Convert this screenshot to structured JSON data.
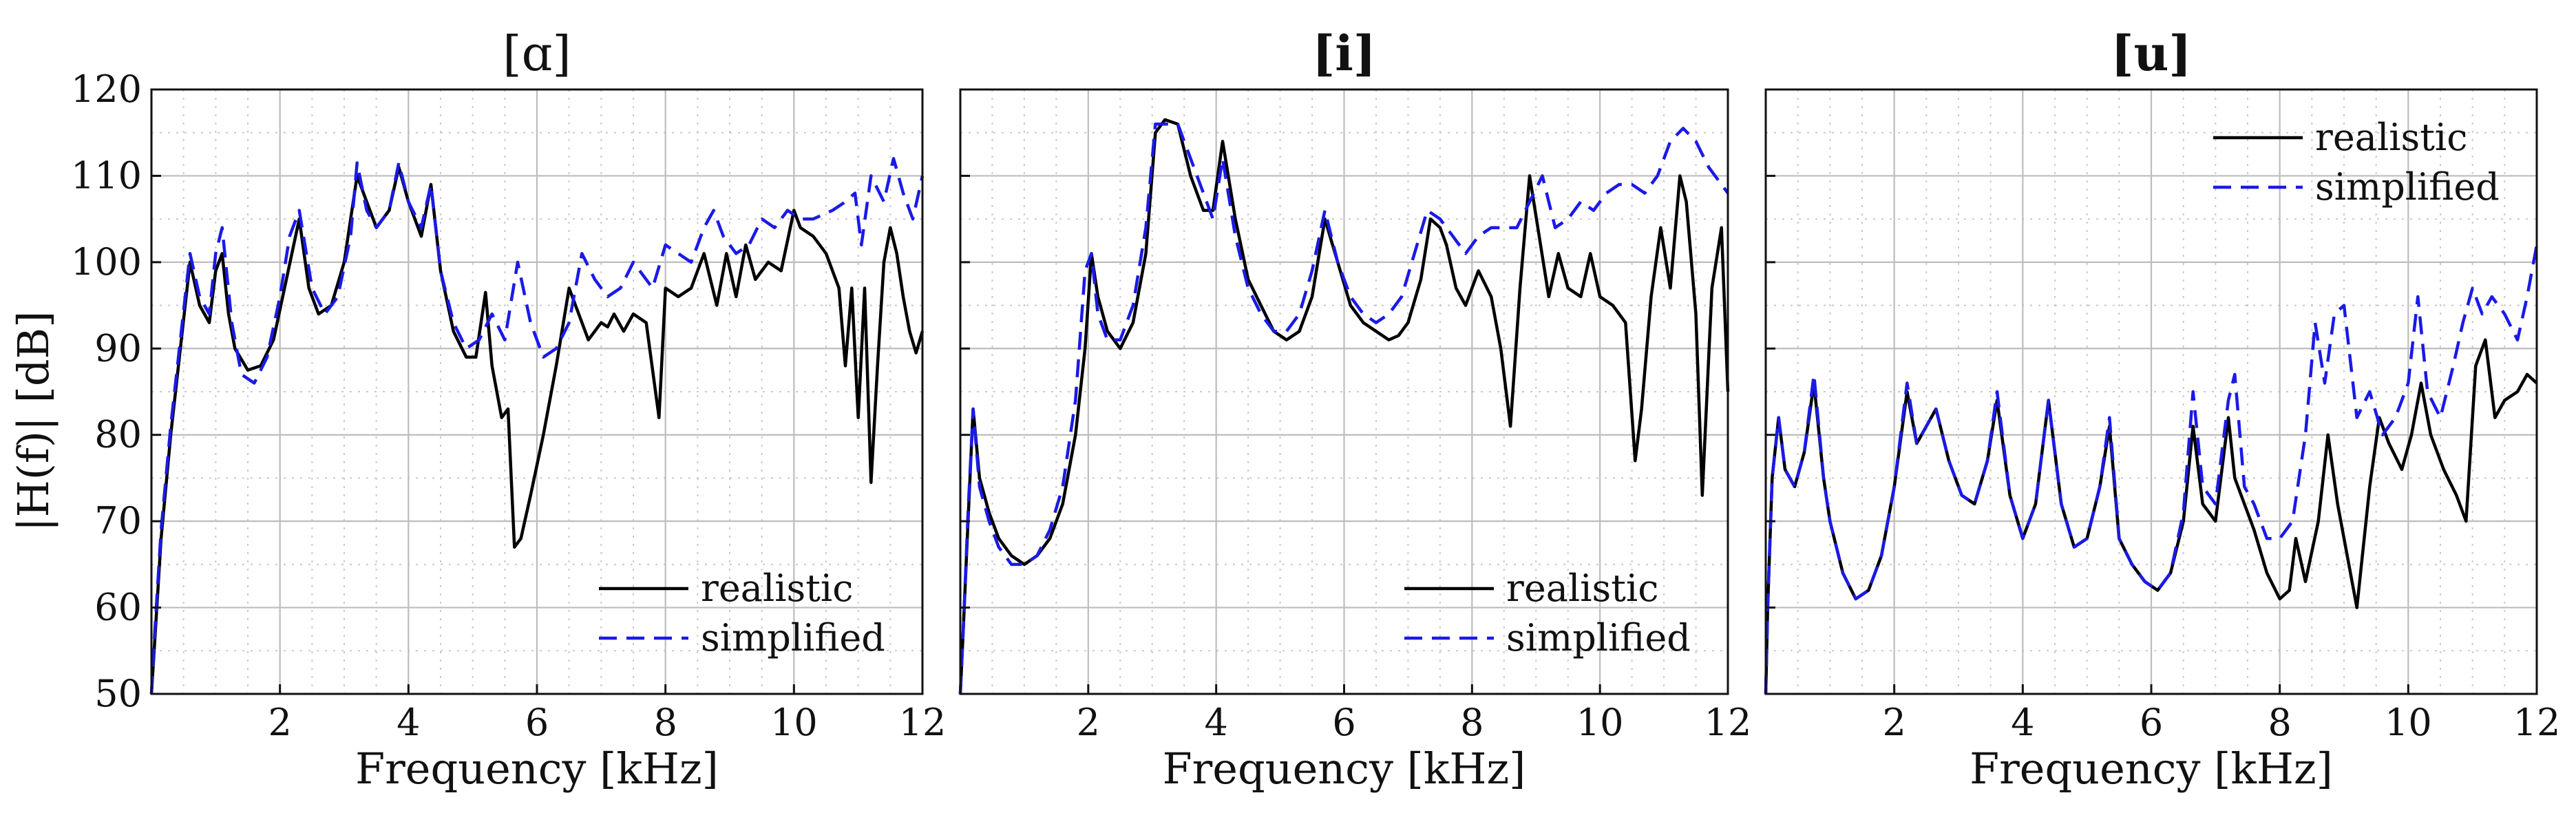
{
  "colors": {
    "realistic": "#000000",
    "simplified": "#1a1ae6",
    "grid": "#bdbdbd"
  },
  "ylabel": "|H(f)| [dB]",
  "chart_data": [
    {
      "type": "line",
      "title": "[ɑ]",
      "title_bold": false,
      "xlabel": "Frequency [kHz]",
      "xlim": [
        0,
        12
      ],
      "ylim": [
        50,
        120
      ],
      "xticks": [
        2,
        4,
        6,
        8,
        10,
        12
      ],
      "yticks": [
        50,
        60,
        70,
        80,
        90,
        100,
        110,
        120
      ],
      "legend": "bottom-right",
      "series": [
        {
          "name": "realistic",
          "style": "solid",
          "x": [
            0,
            0.05,
            0.15,
            0.3,
            0.45,
            0.6,
            0.75,
            0.9,
            1.0,
            1.1,
            1.2,
            1.3,
            1.5,
            1.7,
            1.9,
            2.1,
            2.3,
            2.45,
            2.6,
            2.8,
            3.0,
            3.2,
            3.35,
            3.5,
            3.7,
            3.85,
            4.0,
            4.2,
            4.35,
            4.5,
            4.7,
            4.9,
            5.05,
            5.2,
            5.3,
            5.45,
            5.55,
            5.65,
            5.75,
            5.9,
            6.1,
            6.3,
            6.5,
            6.65,
            6.8,
            7.0,
            7.1,
            7.2,
            7.35,
            7.5,
            7.7,
            7.9,
            8.0,
            8.2,
            8.4,
            8.6,
            8.8,
            8.95,
            9.1,
            9.25,
            9.4,
            9.6,
            9.8,
            10.0,
            10.1,
            10.3,
            10.5,
            10.7,
            10.8,
            10.9,
            11.0,
            11.1,
            11.2,
            11.3,
            11.4,
            11.5,
            11.6,
            11.7,
            11.8,
            11.9,
            12.0
          ],
          "y": [
            50,
            56,
            68,
            80,
            90,
            100,
            95,
            93,
            99,
            101,
            94,
            90,
            87.5,
            88,
            91,
            98,
            105,
            97,
            94,
            95,
            100,
            110,
            107,
            104,
            106,
            111,
            107,
            103,
            109,
            99,
            92,
            89,
            89,
            96.5,
            88,
            82,
            83,
            67,
            68,
            73,
            80,
            88,
            97,
            94,
            91,
            93,
            92.5,
            94,
            92,
            94,
            93,
            82,
            97,
            96,
            97,
            101,
            95,
            101,
            96,
            102,
            98,
            100,
            99,
            106,
            104,
            103,
            101,
            97,
            88,
            97,
            82,
            97,
            74.5,
            88,
            100,
            104,
            101,
            96,
            92,
            89.5,
            92
          ]
        },
        {
          "name": "simplified",
          "style": "dashed",
          "x": [
            0,
            0.05,
            0.15,
            0.3,
            0.45,
            0.6,
            0.75,
            0.9,
            1.0,
            1.1,
            1.25,
            1.4,
            1.6,
            1.8,
            2.0,
            2.15,
            2.3,
            2.5,
            2.7,
            2.9,
            3.1,
            3.2,
            3.35,
            3.5,
            3.7,
            3.85,
            4.0,
            4.2,
            4.35,
            4.5,
            4.7,
            4.9,
            5.1,
            5.3,
            5.5,
            5.7,
            5.9,
            6.1,
            6.3,
            6.5,
            6.7,
            6.9,
            7.1,
            7.3,
            7.5,
            7.8,
            8.0,
            8.2,
            8.4,
            8.6,
            8.75,
            8.9,
            9.1,
            9.3,
            9.5,
            9.7,
            9.9,
            10.1,
            10.3,
            10.6,
            10.8,
            10.95,
            11.05,
            11.2,
            11.4,
            11.55,
            11.7,
            11.85,
            12.0
          ],
          "y": [
            50,
            57,
            69,
            81,
            91,
            101,
            96,
            94,
            101,
            104,
            93,
            87,
            86,
            89,
            96,
            103,
            106,
            97,
            94,
            96,
            103,
            111.5,
            106,
            104,
            106,
            111.5,
            107,
            104,
            109,
            99,
            93,
            90,
            91,
            94,
            91,
            100,
            93,
            89,
            90,
            93,
            101,
            98,
            96,
            97,
            100,
            97,
            102,
            101,
            100,
            104,
            106,
            103,
            101,
            102,
            105,
            104,
            106,
            105,
            105,
            106,
            107,
            108,
            102,
            110,
            107,
            112,
            108,
            105,
            110
          ]
        }
      ]
    },
    {
      "type": "line",
      "title": "[i]",
      "title_bold": true,
      "xlabel": "Frequency [kHz]",
      "xlim": [
        0,
        12
      ],
      "ylim": [
        50,
        120
      ],
      "xticks": [
        2,
        4,
        6,
        8,
        10,
        12
      ],
      "yticks": [
        50,
        60,
        70,
        80,
        90,
        100,
        110,
        120
      ],
      "legend": "bottom-right",
      "series": [
        {
          "name": "realistic",
          "style": "solid",
          "x": [
            0,
            0.05,
            0.12,
            0.2,
            0.3,
            0.45,
            0.6,
            0.8,
            1.0,
            1.2,
            1.4,
            1.6,
            1.8,
            1.95,
            2.05,
            2.15,
            2.3,
            2.5,
            2.7,
            2.9,
            3.05,
            3.2,
            3.4,
            3.6,
            3.8,
            3.95,
            4.1,
            4.3,
            4.5,
            4.7,
            4.9,
            5.1,
            5.3,
            5.5,
            5.7,
            5.9,
            6.1,
            6.3,
            6.5,
            6.7,
            6.85,
            7.0,
            7.2,
            7.35,
            7.5,
            7.6,
            7.75,
            7.9,
            8.1,
            8.3,
            8.45,
            8.6,
            8.75,
            8.9,
            9.05,
            9.2,
            9.35,
            9.5,
            9.7,
            9.85,
            10.0,
            10.2,
            10.4,
            10.55,
            10.65,
            10.8,
            10.95,
            11.1,
            11.25,
            11.35,
            11.5,
            11.6,
            11.75,
            11.9,
            12.0
          ],
          "y": [
            50,
            58,
            70,
            83,
            75,
            71,
            68,
            66,
            65,
            66,
            68,
            72,
            80,
            90,
            101,
            96,
            92,
            90,
            93,
            101,
            115,
            116.5,
            116,
            110,
            106,
            106,
            114,
            105,
            98,
            95,
            92,
            91,
            92,
            96,
            105,
            100,
            95,
            93,
            92,
            91,
            91.5,
            93,
            98,
            105,
            104,
            102,
            97,
            95,
            99,
            96,
            90,
            81,
            97,
            110,
            103,
            96,
            101,
            97,
            96,
            101,
            96,
            95,
            93,
            77,
            83,
            96,
            104,
            97,
            110,
            107,
            94,
            73,
            97,
            104,
            85
          ]
        },
        {
          "name": "simplified",
          "style": "dashed",
          "x": [
            0,
            0.05,
            0.12,
            0.2,
            0.3,
            0.45,
            0.6,
            0.8,
            1.0,
            1.2,
            1.4,
            1.6,
            1.8,
            1.95,
            2.05,
            2.15,
            2.3,
            2.5,
            2.7,
            2.9,
            3.05,
            3.2,
            3.4,
            3.6,
            3.8,
            3.95,
            4.1,
            4.3,
            4.5,
            4.7,
            4.9,
            5.1,
            5.3,
            5.5,
            5.7,
            5.9,
            6.1,
            6.3,
            6.5,
            6.7,
            6.9,
            7.1,
            7.3,
            7.5,
            7.7,
            7.9,
            8.1,
            8.3,
            8.5,
            8.7,
            8.9,
            9.1,
            9.3,
            9.5,
            9.7,
            9.9,
            10.1,
            10.3,
            10.5,
            10.7,
            10.9,
            11.1,
            11.3,
            11.5,
            11.7,
            11.9,
            12.0
          ],
          "y": [
            50,
            58,
            71,
            83,
            74,
            70,
            67,
            65,
            65,
            66,
            69,
            74,
            84,
            99,
            101,
            94,
            91,
            91,
            95,
            104,
            116,
            116,
            116,
            112,
            108,
            105,
            112,
            103,
            97,
            94,
            92,
            92,
            94,
            99,
            106,
            100,
            96,
            94,
            93,
            94,
            96,
            101,
            106,
            105,
            103,
            101,
            103,
            104,
            104,
            104,
            107,
            110,
            104,
            105,
            107,
            106,
            108,
            109,
            109,
            108,
            110,
            114,
            115.5,
            114,
            111,
            109,
            108
          ]
        }
      ]
    },
    {
      "type": "line",
      "title": "[u]",
      "title_bold": true,
      "xlabel": "Frequency [kHz]",
      "xlim": [
        0,
        12
      ],
      "ylim": [
        50,
        120
      ],
      "xticks": [
        2,
        4,
        6,
        8,
        10,
        12
      ],
      "yticks": [
        50,
        60,
        70,
        80,
        90,
        100,
        110,
        120
      ],
      "legend": "top-right",
      "series": [
        {
          "name": "realistic",
          "style": "solid",
          "x": [
            0,
            0.03,
            0.1,
            0.2,
            0.3,
            0.45,
            0.6,
            0.75,
            0.9,
            1.0,
            1.2,
            1.4,
            1.6,
            1.8,
            2.0,
            2.2,
            2.35,
            2.5,
            2.65,
            2.85,
            3.05,
            3.25,
            3.45,
            3.6,
            3.8,
            4.0,
            4.2,
            4.4,
            4.6,
            4.8,
            5.0,
            5.2,
            5.35,
            5.5,
            5.7,
            5.9,
            6.1,
            6.3,
            6.5,
            6.65,
            6.8,
            7.0,
            7.2,
            7.3,
            7.45,
            7.6,
            7.8,
            8.0,
            8.15,
            8.25,
            8.4,
            8.6,
            8.75,
            8.9,
            9.05,
            9.2,
            9.4,
            9.55,
            9.7,
            9.9,
            10.05,
            10.2,
            10.35,
            10.55,
            10.75,
            10.9,
            11.05,
            11.2,
            11.35,
            11.5,
            11.7,
            11.85,
            12.0
          ],
          "y": [
            50,
            60,
            75,
            82,
            76,
            74,
            78,
            86,
            75,
            70,
            64,
            61,
            62,
            66,
            74,
            85,
            79,
            81,
            83,
            77,
            73,
            72,
            77,
            84,
            73,
            68,
            72,
            84,
            72,
            67,
            68,
            74,
            81,
            68,
            65,
            63,
            62,
            64,
            70,
            81,
            72,
            70,
            82,
            75,
            72,
            69,
            64,
            61,
            62,
            68,
            63,
            70,
            80,
            72,
            66,
            60,
            74,
            82,
            79,
            76,
            80,
            86,
            80,
            76,
            73,
            70,
            88,
            91,
            82,
            84,
            85,
            87,
            86
          ]
        },
        {
          "name": "simplified",
          "style": "dashed",
          "x": [
            0,
            0.03,
            0.1,
            0.2,
            0.3,
            0.45,
            0.6,
            0.75,
            0.9,
            1.0,
            1.2,
            1.4,
            1.6,
            1.8,
            2.0,
            2.2,
            2.35,
            2.5,
            2.65,
            2.85,
            3.05,
            3.25,
            3.45,
            3.6,
            3.8,
            4.0,
            4.2,
            4.4,
            4.6,
            4.8,
            5.0,
            5.2,
            5.35,
            5.5,
            5.7,
            5.9,
            6.1,
            6.3,
            6.5,
            6.65,
            6.8,
            7.0,
            7.2,
            7.3,
            7.45,
            7.6,
            7.8,
            8.0,
            8.2,
            8.4,
            8.55,
            8.7,
            8.85,
            9.0,
            9.2,
            9.4,
            9.6,
            9.8,
            10.0,
            10.15,
            10.3,
            10.5,
            10.7,
            10.85,
            11.0,
            11.15,
            11.3,
            11.5,
            11.7,
            11.85,
            12.0
          ],
          "y": [
            50,
            60,
            75,
            82,
            76,
            74,
            78,
            87,
            75,
            70,
            64,
            61,
            62,
            66,
            74,
            86,
            79,
            81,
            83,
            77,
            73,
            72,
            77,
            85,
            73,
            68,
            72,
            84,
            72,
            67,
            68,
            74,
            82,
            68,
            65,
            63,
            62,
            64,
            71,
            85,
            74,
            72,
            84,
            87,
            74,
            72,
            68,
            68,
            70,
            80,
            93,
            86,
            94,
            95,
            82,
            85,
            80,
            82,
            86,
            96,
            85,
            82,
            88,
            93,
            97,
            94,
            96,
            94,
            91,
            96,
            102
          ]
        }
      ]
    }
  ]
}
